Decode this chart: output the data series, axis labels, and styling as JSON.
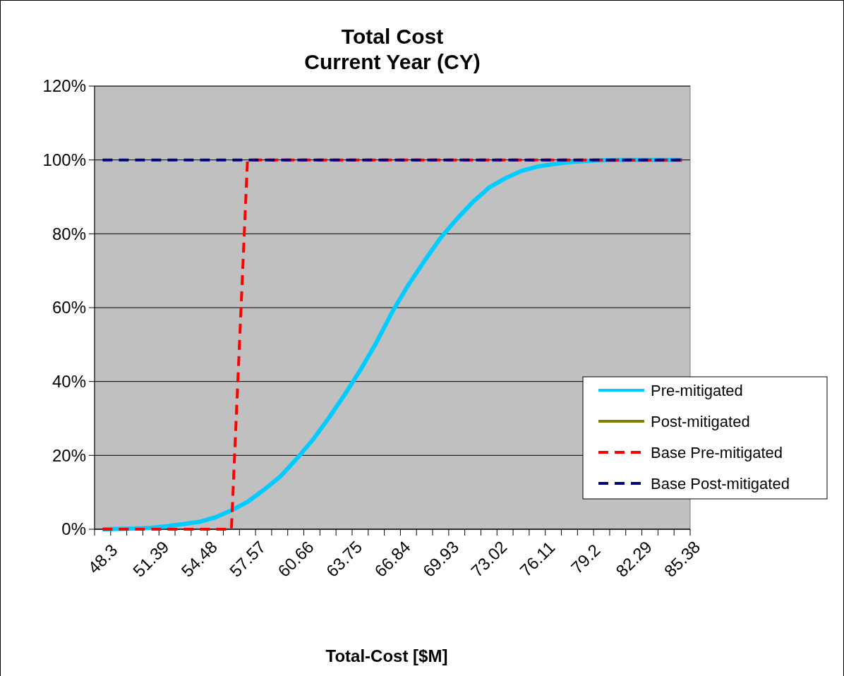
{
  "chart_data": {
    "type": "line",
    "title": "Total Cost\nCurrent Year (CY)",
    "xlabel": "Total-Cost [$M]",
    "categories": [
      "48.3",
      null,
      null,
      "51.39",
      null,
      null,
      "54.48",
      null,
      null,
      "57.57",
      null,
      null,
      "60.66",
      null,
      null,
      "63.75",
      null,
      null,
      "66.84",
      null,
      null,
      "69.93",
      null,
      null,
      "73.02",
      null,
      null,
      "76.11",
      null,
      null,
      "79.2",
      null,
      null,
      "82.29",
      null,
      null,
      "85.38"
    ],
    "series": [
      {
        "name": "Pre-mitigated",
        "color": "#00ccff",
        "line_style": "solid",
        "values": [
          0,
          0.1,
          0.2,
          0.4,
          0.8,
          1.4,
          2.0,
          3.2,
          5.1,
          7.4,
          10.6,
          14.1,
          18.8,
          23.9,
          29.8,
          36.2,
          43,
          50.5,
          58.9,
          66.2,
          72.7,
          78.9,
          84,
          88.6,
          92.5,
          95,
          97,
          98.2,
          98.9,
          99.4,
          99.7,
          99.9,
          100,
          100,
          100,
          100,
          100
        ]
      },
      {
        "name": "Post-mitigated",
        "color": "#808000",
        "line_style": "solid",
        "values": [
          null,
          null,
          null,
          null,
          null,
          null,
          null,
          null,
          null,
          null,
          null,
          null,
          null,
          null,
          null,
          null,
          null,
          null,
          null,
          null,
          null,
          null,
          null,
          null,
          null,
          null,
          null,
          null,
          null,
          null,
          null,
          null,
          null,
          null,
          null,
          null,
          null
        ]
      },
      {
        "name": "Base Pre-mitigated",
        "color": "#ff0000",
        "line_style": "dashed",
        "values": [
          0,
          0,
          0,
          0,
          0,
          0,
          0,
          0,
          0,
          100,
          100,
          100,
          100,
          100,
          100,
          100,
          100,
          100,
          100,
          100,
          100,
          100,
          100,
          100,
          100,
          100,
          100,
          100,
          100,
          100,
          100,
          100,
          100,
          100,
          100,
          100,
          100
        ]
      },
      {
        "name": "Base Post-mitigated",
        "color": "#000080",
        "line_style": "dashed",
        "values": [
          100,
          100,
          100,
          100,
          100,
          100,
          100,
          100,
          100,
          100,
          100,
          100,
          100,
          100,
          100,
          100,
          100,
          100,
          100,
          100,
          100,
          100,
          100,
          100,
          100,
          100,
          100,
          100,
          100,
          100,
          100,
          100,
          100,
          100,
          100,
          100,
          100
        ]
      }
    ],
    "ylim": [
      0,
      120
    ],
    "yticks": [
      {
        "value": 0,
        "label": "0%"
      },
      {
        "value": 20,
        "label": "20%"
      },
      {
        "value": 40,
        "label": "40%"
      },
      {
        "value": 60,
        "label": "60%"
      },
      {
        "value": 80,
        "label": "80%"
      },
      {
        "value": 100,
        "label": "100%"
      },
      {
        "value": 120,
        "label": "120%"
      }
    ],
    "grid": "y",
    "legend": "right",
    "marker": "none"
  }
}
